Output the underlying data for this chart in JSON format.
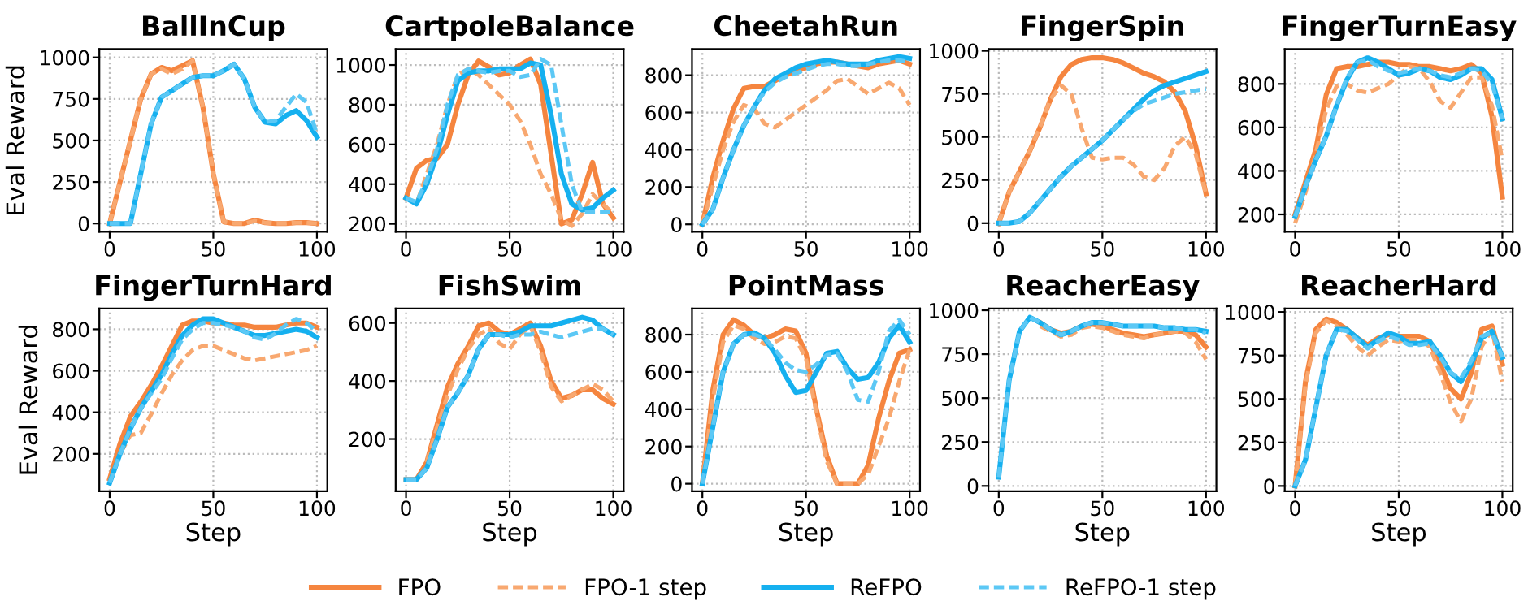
{
  "chart_data": [
    {
      "type": "line",
      "title": "BallInCup",
      "ylabel": "Eval Reward",
      "xlim": [
        -5,
        105
      ],
      "xticks": [
        0,
        50,
        100
      ],
      "ylim": [
        -50,
        1050
      ],
      "yticks": [
        0,
        250,
        500,
        750,
        1000
      ],
      "grid": true,
      "legend": "bottom",
      "x": [
        0,
        5,
        10,
        15,
        20,
        25,
        30,
        35,
        40,
        45,
        50,
        55,
        60,
        65,
        70,
        75,
        80,
        85,
        90,
        95,
        100
      ],
      "series": [
        {
          "name": "FPO",
          "color": "#f5853f",
          "line_style": "solid",
          "values": [
            0,
            250,
            500,
            750,
            900,
            940,
            920,
            950,
            980,
            700,
            300,
            10,
            0,
            0,
            20,
            5,
            0,
            0,
            5,
            5,
            0
          ]
        },
        {
          "name": "FPO-1 step",
          "color": "#f8a870",
          "line_style": "dashed",
          "values": [
            0,
            250,
            500,
            750,
            900,
            930,
            900,
            930,
            980,
            700,
            300,
            10,
            0,
            0,
            15,
            5,
            0,
            0,
            5,
            5,
            0
          ]
        },
        {
          "name": "ReFPO",
          "color": "#15b0ef",
          "line_style": "solid",
          "values": [
            0,
            0,
            0,
            300,
            600,
            760,
            800,
            840,
            880,
            890,
            890,
            920,
            960,
            870,
            700,
            610,
            600,
            650,
            680,
            620,
            520
          ]
        },
        {
          "name": "ReFPO-1 step",
          "color": "#5cc8f5",
          "line_style": "dashed",
          "values": [
            0,
            0,
            0,
            300,
            600,
            760,
            800,
            840,
            880,
            890,
            890,
            920,
            960,
            870,
            700,
            610,
            620,
            700,
            780,
            730,
            540
          ]
        }
      ]
    },
    {
      "type": "line",
      "title": "CartpoleBalance",
      "xlim": [
        -5,
        105
      ],
      "xticks": [
        0,
        50,
        100
      ],
      "ylim": [
        160,
        1080
      ],
      "yticks": [
        200,
        400,
        600,
        800,
        1000
      ],
      "grid": true,
      "x": [
        0,
        5,
        10,
        15,
        20,
        25,
        30,
        35,
        40,
        45,
        50,
        55,
        60,
        65,
        70,
        75,
        80,
        85,
        90,
        95,
        100
      ],
      "series": [
        {
          "color": "#f5853f",
          "line_style": "solid",
          "values": [
            330,
            480,
            520,
            530,
            600,
            800,
            950,
            1020,
            990,
            950,
            960,
            1000,
            1030,
            900,
            550,
            200,
            220,
            350,
            510,
            300,
            230
          ]
        },
        {
          "color": "#f8a870",
          "line_style": "dashed",
          "values": [
            330,
            300,
            450,
            600,
            800,
            950,
            980,
            950,
            900,
            850,
            800,
            720,
            600,
            450,
            350,
            220,
            190,
            250,
            350,
            300,
            250
          ]
        },
        {
          "color": "#15b0ef",
          "line_style": "solid",
          "values": [
            330,
            300,
            400,
            550,
            750,
            920,
            960,
            970,
            970,
            980,
            980,
            980,
            1010,
            1000,
            750,
            450,
            300,
            270,
            280,
            330,
            370
          ]
        },
        {
          "color": "#5cc8f5",
          "line_style": "dashed",
          "values": [
            330,
            310,
            420,
            580,
            800,
            950,
            980,
            970,
            960,
            970,
            970,
            940,
            950,
            1030,
            1000,
            700,
            400,
            260,
            260,
            260,
            260
          ]
        }
      ]
    },
    {
      "type": "line",
      "title": "CheetahRun",
      "xlim": [
        -5,
        105
      ],
      "xticks": [
        0,
        50,
        100
      ],
      "ylim": [
        -40,
        940
      ],
      "yticks": [
        0,
        200,
        400,
        600,
        800
      ],
      "grid": true,
      "x": [
        0,
        5,
        10,
        15,
        20,
        25,
        30,
        35,
        40,
        45,
        50,
        55,
        60,
        65,
        70,
        75,
        80,
        85,
        90,
        95,
        100
      ],
      "series": [
        {
          "color": "#f5853f",
          "line_style": "solid",
          "values": [
            0,
            250,
            450,
            620,
            730,
            740,
            740,
            770,
            800,
            820,
            840,
            860,
            870,
            870,
            860,
            850,
            840,
            860,
            870,
            880,
            860
          ]
        },
        {
          "color": "#f8a870",
          "line_style": "dashed",
          "values": [
            0,
            200,
            400,
            550,
            640,
            620,
            540,
            520,
            560,
            600,
            640,
            680,
            720,
            770,
            780,
            740,
            700,
            730,
            760,
            730,
            640
          ]
        },
        {
          "color": "#15b0ef",
          "line_style": "solid",
          "values": [
            0,
            80,
            250,
            400,
            530,
            630,
            720,
            780,
            810,
            840,
            860,
            870,
            880,
            870,
            860,
            860,
            860,
            880,
            890,
            900,
            890
          ]
        },
        {
          "color": "#5cc8f5",
          "line_style": "dashed",
          "values": [
            0,
            80,
            250,
            400,
            530,
            630,
            710,
            760,
            790,
            810,
            830,
            850,
            860,
            860,
            850,
            850,
            860,
            870,
            880,
            880,
            870
          ]
        }
      ]
    },
    {
      "type": "line",
      "title": "FingerSpin",
      "xlim": [
        -5,
        105
      ],
      "xticks": [
        0,
        50,
        100
      ],
      "ylim": [
        -50,
        1010
      ],
      "yticks": [
        0,
        250,
        500,
        750,
        1000
      ],
      "grid": true,
      "x": [
        0,
        5,
        10,
        15,
        20,
        25,
        30,
        35,
        40,
        45,
        50,
        55,
        60,
        65,
        70,
        75,
        80,
        85,
        90,
        95,
        100
      ],
      "series": [
        {
          "color": "#f5853f",
          "line_style": "solid",
          "values": [
            0,
            180,
            300,
            420,
            560,
            720,
            850,
            920,
            950,
            960,
            960,
            950,
            930,
            900,
            870,
            850,
            820,
            760,
            650,
            450,
            170
          ]
        },
        {
          "color": "#f8a870",
          "line_style": "dashed",
          "values": [
            0,
            180,
            300,
            420,
            560,
            720,
            800,
            750,
            550,
            380,
            370,
            380,
            380,
            340,
            270,
            250,
            320,
            450,
            500,
            400,
            170
          ]
        },
        {
          "color": "#15b0ef",
          "line_style": "solid",
          "values": [
            0,
            0,
            10,
            60,
            130,
            200,
            270,
            330,
            380,
            430,
            480,
            540,
            600,
            660,
            720,
            770,
            800,
            820,
            840,
            860,
            880
          ]
        },
        {
          "color": "#5cc8f5",
          "line_style": "dashed",
          "values": [
            0,
            0,
            10,
            60,
            130,
            200,
            270,
            330,
            380,
            430,
            480,
            540,
            600,
            650,
            690,
            710,
            730,
            750,
            760,
            770,
            780
          ]
        }
      ]
    },
    {
      "type": "line",
      "title": "FingerTurnEasy",
      "xlim": [
        -5,
        105
      ],
      "xticks": [
        0,
        50,
        100
      ],
      "ylim": [
        120,
        960
      ],
      "yticks": [
        200,
        400,
        600,
        800
      ],
      "grid": true,
      "x": [
        0,
        5,
        10,
        15,
        20,
        25,
        30,
        35,
        40,
        45,
        50,
        55,
        60,
        65,
        70,
        75,
        80,
        85,
        90,
        95,
        100
      ],
      "series": [
        {
          "color": "#f5853f",
          "line_style": "solid",
          "values": [
            200,
            350,
            500,
            750,
            870,
            880,
            880,
            890,
            900,
            900,
            890,
            890,
            880,
            880,
            870,
            860,
            870,
            890,
            850,
            650,
            280
          ]
        },
        {
          "color": "#f8a870",
          "line_style": "dashed",
          "values": [
            160,
            300,
            480,
            680,
            790,
            800,
            770,
            760,
            780,
            800,
            840,
            880,
            870,
            810,
            720,
            690,
            760,
            830,
            830,
            700,
            450
          ]
        },
        {
          "color": "#15b0ef",
          "line_style": "solid",
          "values": [
            190,
            330,
            450,
            560,
            700,
            820,
            900,
            920,
            900,
            870,
            840,
            850,
            870,
            860,
            830,
            820,
            840,
            870,
            870,
            820,
            640
          ]
        },
        {
          "color": "#5cc8f5",
          "line_style": "dashed",
          "values": [
            190,
            330,
            450,
            560,
            700,
            830,
            900,
            910,
            880,
            860,
            850,
            860,
            870,
            860,
            840,
            830,
            850,
            870,
            860,
            800,
            640
          ]
        }
      ]
    },
    {
      "type": "line",
      "title": "FingerTurnHard",
      "xlabel": "Step",
      "ylabel": "Eval Reward",
      "xlim": [
        -5,
        105
      ],
      "xticks": [
        0,
        50,
        100
      ],
      "ylim": [
        20,
        900
      ],
      "yticks": [
        200,
        400,
        600,
        800
      ],
      "grid": true,
      "x": [
        0,
        5,
        10,
        15,
        20,
        25,
        30,
        35,
        40,
        45,
        50,
        55,
        60,
        65,
        70,
        75,
        80,
        85,
        90,
        95,
        100
      ],
      "series": [
        {
          "color": "#f5853f",
          "line_style": "solid",
          "values": [
            80,
            250,
            380,
            450,
            530,
            620,
            720,
            820,
            840,
            840,
            830,
            830,
            820,
            820,
            810,
            810,
            810,
            820,
            830,
            830,
            810
          ]
        },
        {
          "color": "#f8a870",
          "line_style": "dashed",
          "values": [
            70,
            200,
            290,
            300,
            390,
            490,
            580,
            650,
            700,
            720,
            720,
            700,
            680,
            660,
            650,
            660,
            670,
            680,
            690,
            700,
            720
          ]
        },
        {
          "color": "#15b0ef",
          "line_style": "solid",
          "values": [
            60,
            200,
            320,
            420,
            500,
            580,
            680,
            770,
            820,
            850,
            850,
            830,
            810,
            790,
            770,
            770,
            780,
            790,
            800,
            790,
            760
          ]
        },
        {
          "color": "#5cc8f5",
          "line_style": "dashed",
          "values": [
            60,
            200,
            320,
            420,
            490,
            560,
            660,
            750,
            800,
            830,
            830,
            820,
            810,
            790,
            760,
            750,
            780,
            820,
            850,
            830,
            790
          ]
        }
      ]
    },
    {
      "type": "line",
      "title": "FishSwim",
      "xlabel": "Step",
      "xlim": [
        -5,
        105
      ],
      "xticks": [
        0,
        50,
        100
      ],
      "ylim": [
        20,
        650
      ],
      "yticks": [
        200,
        400,
        600
      ],
      "grid": true,
      "x": [
        0,
        5,
        10,
        15,
        20,
        25,
        30,
        35,
        40,
        45,
        50,
        55,
        60,
        65,
        70,
        75,
        80,
        85,
        90,
        95,
        100
      ],
      "series": [
        {
          "color": "#f5853f",
          "line_style": "solid",
          "values": [
            60,
            60,
            120,
            250,
            380,
            460,
            520,
            590,
            600,
            570,
            560,
            580,
            600,
            520,
            400,
            340,
            350,
            370,
            370,
            340,
            320
          ]
        },
        {
          "color": "#f8a870",
          "line_style": "dashed",
          "values": [
            null,
            null,
            120,
            240,
            350,
            440,
            510,
            560,
            580,
            530,
            510,
            560,
            590,
            500,
            380,
            330,
            350,
            370,
            390,
            370,
            330
          ]
        },
        {
          "color": "#15b0ef",
          "line_style": "solid",
          "values": [
            60,
            60,
            100,
            200,
            310,
            360,
            420,
            510,
            560,
            560,
            560,
            570,
            590,
            590,
            590,
            600,
            610,
            620,
            610,
            580,
            560
          ]
        },
        {
          "color": "#5cc8f5",
          "line_style": "dashed",
          "values": [
            60,
            60,
            100,
            200,
            310,
            360,
            420,
            510,
            560,
            560,
            550,
            560,
            560,
            570,
            560,
            550,
            560,
            570,
            580,
            580,
            560
          ]
        }
      ]
    },
    {
      "type": "line",
      "title": "PointMass",
      "xlabel": "Step",
      "xlim": [
        -5,
        105
      ],
      "xticks": [
        0,
        50,
        100
      ],
      "ylim": [
        -40,
        940
      ],
      "yticks": [
        0,
        200,
        400,
        600,
        800
      ],
      "grid": true,
      "x": [
        0,
        5,
        10,
        15,
        20,
        25,
        30,
        35,
        40,
        45,
        50,
        55,
        60,
        65,
        70,
        75,
        80,
        85,
        90,
        95,
        100
      ],
      "series": [
        {
          "color": "#f5853f",
          "line_style": "solid",
          "values": [
            0,
            500,
            800,
            880,
            850,
            800,
            780,
            800,
            830,
            820,
            700,
            400,
            150,
            0,
            0,
            0,
            100,
            350,
            550,
            700,
            720
          ]
        },
        {
          "color": "#f8a870",
          "line_style": "dashed",
          "values": [
            0,
            450,
            760,
            850,
            830,
            780,
            750,
            760,
            790,
            780,
            670,
            380,
            120,
            0,
            0,
            0,
            50,
            200,
            350,
            550,
            720
          ]
        },
        {
          "color": "#15b0ef",
          "line_style": "solid",
          "values": [
            0,
            300,
            600,
            750,
            800,
            810,
            780,
            700,
            580,
            490,
            500,
            600,
            700,
            710,
            620,
            560,
            570,
            650,
            780,
            850,
            760
          ]
        },
        {
          "color": "#5cc8f5",
          "line_style": "dashed",
          "values": [
            0,
            300,
            600,
            750,
            800,
            800,
            780,
            720,
            650,
            610,
            600,
            640,
            690,
            700,
            600,
            450,
            440,
            600,
            820,
            880,
            800
          ]
        }
      ]
    },
    {
      "type": "line",
      "title": "ReacherEasy",
      "xlabel": "Step",
      "xlim": [
        -5,
        105
      ],
      "xticks": [
        0,
        50,
        100
      ],
      "ylim": [
        -30,
        1010
      ],
      "yticks": [
        0,
        250,
        500,
        750,
        1000
      ],
      "grid": true,
      "x": [
        0,
        5,
        10,
        15,
        20,
        25,
        30,
        35,
        40,
        45,
        50,
        55,
        60,
        65,
        70,
        75,
        80,
        85,
        90,
        95,
        100
      ],
      "series": [
        {
          "color": "#f5853f",
          "line_style": "solid",
          "values": [
            null,
            null,
            null,
            null,
            930,
            890,
            870,
            880,
            910,
            920,
            910,
            890,
            870,
            860,
            850,
            860,
            870,
            880,
            880,
            860,
            790
          ]
        },
        {
          "color": "#f8a870",
          "line_style": "dashed",
          "values": [
            null,
            null,
            null,
            null,
            910,
            880,
            850,
            860,
            900,
            910,
            900,
            880,
            860,
            850,
            840,
            860,
            870,
            880,
            870,
            820,
            720
          ]
        },
        {
          "color": "#15b0ef",
          "line_style": "solid",
          "values": [
            50,
            600,
            880,
            960,
            930,
            890,
            860,
            880,
            910,
            930,
            930,
            920,
            910,
            910,
            910,
            910,
            900,
            900,
            890,
            890,
            880
          ]
        },
        {
          "color": "#5cc8f5",
          "line_style": "dashed",
          "values": [
            50,
            600,
            880,
            960,
            930,
            890,
            860,
            880,
            910,
            930,
            930,
            920,
            910,
            910,
            910,
            910,
            900,
            900,
            890,
            890,
            870
          ]
        }
      ]
    },
    {
      "type": "line",
      "title": "ReacherHard",
      "xlabel": "Step",
      "xlim": [
        -5,
        105
      ],
      "xticks": [
        0,
        50,
        100
      ],
      "ylim": [
        -30,
        1020
      ],
      "yticks": [
        0,
        250,
        500,
        750,
        1000
      ],
      "grid": true,
      "x": [
        0,
        5,
        10,
        15,
        20,
        25,
        30,
        35,
        40,
        45,
        50,
        55,
        60,
        65,
        70,
        75,
        80,
        85,
        90,
        95,
        100
      ],
      "series": [
        {
          "color": "#f5853f",
          "line_style": "solid",
          "values": [
            0,
            600,
            900,
            960,
            940,
            900,
            850,
            810,
            850,
            870,
            860,
            860,
            860,
            830,
            700,
            560,
            500,
            650,
            900,
            920,
            700
          ]
        },
        {
          "color": "#f8a870",
          "line_style": "dashed",
          "values": [
            0,
            580,
            880,
            950,
            920,
            870,
            800,
            750,
            800,
            840,
            830,
            840,
            840,
            800,
            650,
            480,
            370,
            500,
            800,
            900,
            600
          ]
        },
        {
          "color": "#15b0ef",
          "line_style": "solid",
          "values": [
            0,
            150,
            450,
            750,
            900,
            900,
            850,
            800,
            840,
            880,
            860,
            820,
            820,
            830,
            750,
            650,
            600,
            700,
            850,
            890,
            740
          ]
        },
        {
          "color": "#5cc8f5",
          "line_style": "dashed",
          "values": [
            0,
            150,
            450,
            750,
            900,
            890,
            840,
            790,
            830,
            860,
            840,
            810,
            810,
            820,
            740,
            650,
            620,
            720,
            860,
            880,
            740
          ]
        }
      ]
    }
  ]
}
